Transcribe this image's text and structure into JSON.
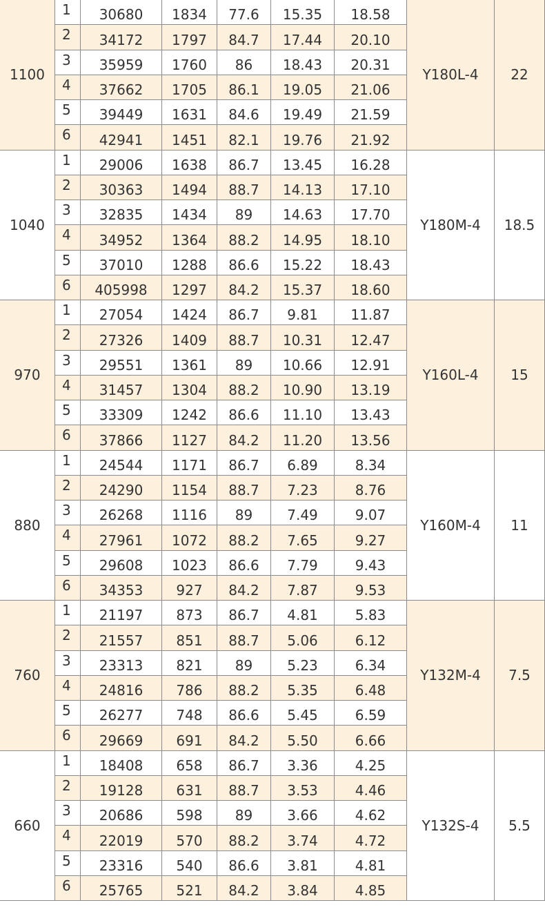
{
  "table": {
    "groups": [
      {
        "speed": "1100",
        "motor": "Y180L-4",
        "power": "22",
        "rows": [
          [
            "1",
            "30680",
            "1834",
            "77.6",
            "15.35",
            "18.58"
          ],
          [
            "2",
            "34172",
            "1797",
            "84.7",
            "17.44",
            "20.10"
          ],
          [
            "3",
            "35959",
            "1760",
            "86",
            "18.43",
            "20.31"
          ],
          [
            "4",
            "37662",
            "1705",
            "86.1",
            "19.05",
            "21.06"
          ],
          [
            "5",
            "39449",
            "1631",
            "84.6",
            "19.49",
            "21.59"
          ],
          [
            "6",
            "42941",
            "1451",
            "82.1",
            "19.76",
            "21.92"
          ]
        ]
      },
      {
        "speed": "1040",
        "motor": "Y180M-4",
        "power": "18.5",
        "rows": [
          [
            "1",
            "29006",
            "1638",
            "86.7",
            "13.45",
            "16.28"
          ],
          [
            "2",
            "30363",
            "1494",
            "88.7",
            "14.13",
            "17.10"
          ],
          [
            "3",
            "32835",
            "1434",
            "89",
            "14.63",
            "17.70"
          ],
          [
            "4",
            "34952",
            "1364",
            "88.2",
            "14.95",
            "18.10"
          ],
          [
            "5",
            "37010",
            "1288",
            "86.6",
            "15.22",
            "18.43"
          ],
          [
            "6",
            "405998",
            "1297",
            "84.2",
            "15.37",
            "18.60"
          ]
        ]
      },
      {
        "speed": "970",
        "motor": "Y160L-4",
        "power": "15",
        "rows": [
          [
            "1",
            "27054",
            "1424",
            "86.7",
            "9.81",
            "11.87"
          ],
          [
            "2",
            "27326",
            "1409",
            "88.7",
            "10.31",
            "12.47"
          ],
          [
            "3",
            "29551",
            "1361",
            "89",
            "10.66",
            "12.91"
          ],
          [
            "4",
            "31457",
            "1304",
            "88.2",
            "10.90",
            "13.19"
          ],
          [
            "5",
            "33309",
            "1242",
            "86.6",
            "11.10",
            "13.43"
          ],
          [
            "6",
            "37866",
            "1127",
            "84.2",
            "11.20",
            "13.56"
          ]
        ]
      },
      {
        "speed": "880",
        "motor": "Y160M-4",
        "power": "11",
        "rows": [
          [
            "1",
            "24544",
            "1171",
            "86.7",
            "6.89",
            "8.34"
          ],
          [
            "2",
            "24290",
            "1154",
            "88.7",
            "7.23",
            "8.76"
          ],
          [
            "3",
            "26268",
            "1116",
            "89",
            "7.49",
            "9.07"
          ],
          [
            "4",
            "27961",
            "1072",
            "88.2",
            "7.65",
            "9.27"
          ],
          [
            "5",
            "29608",
            "1023",
            "86.6",
            "7.79",
            "9.43"
          ],
          [
            "6",
            "34353",
            "927",
            "84.2",
            "7.87",
            "9.53"
          ]
        ]
      },
      {
        "speed": "760",
        "motor": "Y132M-4",
        "power": "7.5",
        "rows": [
          [
            "1",
            "21197",
            "873",
            "86.7",
            "4.81",
            "5.83"
          ],
          [
            "2",
            "21557",
            "851",
            "88.7",
            "5.06",
            "6.12"
          ],
          [
            "3",
            "23313",
            "821",
            "89",
            "5.23",
            "6.34"
          ],
          [
            "4",
            "24816",
            "786",
            "88.2",
            "5.35",
            "6.48"
          ],
          [
            "5",
            "26277",
            "748",
            "86.6",
            "5.45",
            "6.59"
          ],
          [
            "6",
            "29669",
            "691",
            "84.2",
            "5.50",
            "6.66"
          ]
        ]
      },
      {
        "speed": "660",
        "motor": "Y132S-4",
        "power": "5.5",
        "rows": [
          [
            "1",
            "18408",
            "658",
            "86.7",
            "3.36",
            "4.25"
          ],
          [
            "2",
            "19128",
            "631",
            "88.7",
            "3.53",
            "4.46"
          ],
          [
            "3",
            "20686",
            "598",
            "89",
            "3.66",
            "4.62"
          ],
          [
            "4",
            "22019",
            "570",
            "88.2",
            "3.74",
            "4.72"
          ],
          [
            "5",
            "23316",
            "540",
            "86.6",
            "3.81",
            "4.81"
          ],
          [
            "6",
            "25765",
            "521",
            "84.2",
            "3.84",
            "4.85"
          ]
        ]
      }
    ]
  }
}
